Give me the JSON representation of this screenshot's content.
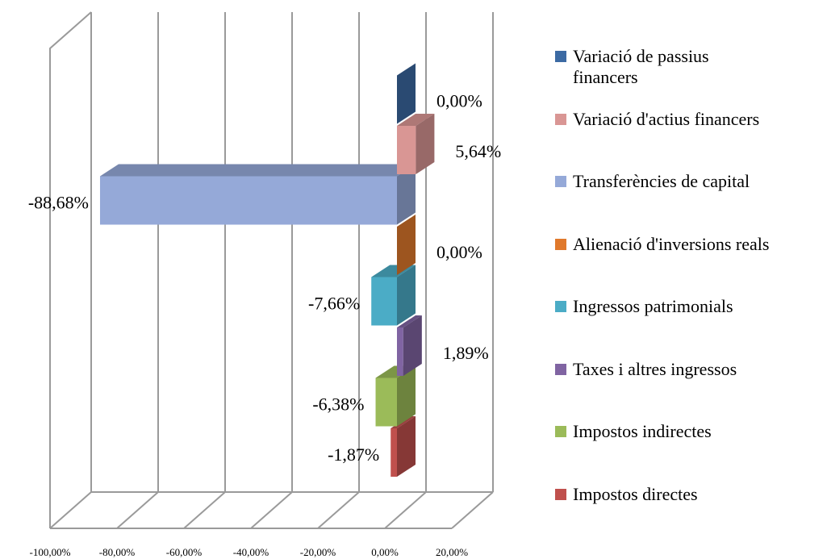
{
  "chart_data": {
    "type": "bar",
    "orientation": "horizontal",
    "three_d": true,
    "categories": [
      "Impostos directes",
      "Impostos indirectes",
      "Taxes i altres ingressos",
      "Ingressos patrimonials",
      "Alienació d'inversions reals",
      "Transferències de capital",
      "Variació d'actius financers",
      "Variació de passius financers"
    ],
    "values": [
      -1.87,
      -6.38,
      1.89,
      -7.66,
      0.0,
      -88.68,
      5.64,
      0.0
    ],
    "value_labels": [
      "-1,87%",
      "-6,38%",
      "1,89%",
      "-7,66%",
      "0,00%",
      "-88,68%",
      "5,64%",
      "0,00%"
    ],
    "colors": [
      "#c0504d",
      "#9bbb59",
      "#8064a2",
      "#4bacc6",
      "#e0792c",
      "#95a9d8",
      "#d99694",
      "#3c6aa3"
    ],
    "xlim": [
      -100,
      20
    ],
    "xticks": [
      {
        "value": -100,
        "label": "-100,00%"
      },
      {
        "value": -80,
        "label": "-80,00%"
      },
      {
        "value": -60,
        "label": "-60,00%"
      },
      {
        "value": -40,
        "label": "-40,00%"
      },
      {
        "value": -20,
        "label": "-20,00%"
      },
      {
        "value": 0,
        "label": "0,00%"
      },
      {
        "value": 20,
        "label": "20,00%"
      }
    ],
    "grid": true,
    "legend": "right"
  }
}
